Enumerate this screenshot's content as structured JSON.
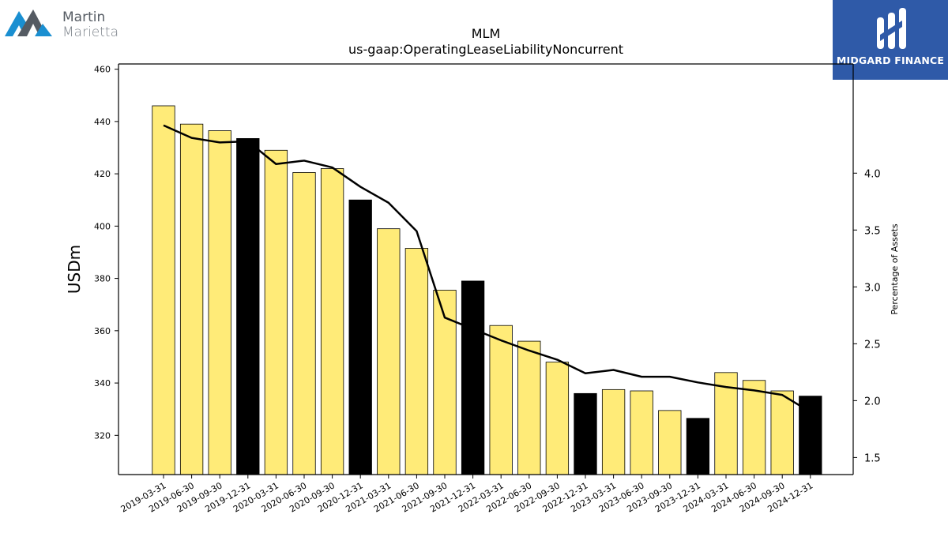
{
  "logos": {
    "left": {
      "line1": "Martin",
      "line2": "Marietta"
    },
    "right": {
      "text": "MIDGARD FINANCE"
    }
  },
  "colors": {
    "bar_default": "#ffeb78",
    "bar_highlight": "#000000",
    "line": "#000000",
    "logo_right_bg": "#2f5aa8",
    "logo_left_blue": "#1a8fd1",
    "logo_left_gray": "#555b63"
  },
  "chart_data": {
    "type": "bar",
    "title": "MLM",
    "subtitle": "us-gaap:OperatingLeaseLiabilityNoncurrent",
    "ylabel": "USDm",
    "y2label": "Percentage of Assets",
    "ylim": [
      305,
      462
    ],
    "y2lim": [
      1.35,
      4.96
    ],
    "yticks": [
      320,
      340,
      360,
      380,
      400,
      420,
      440,
      460
    ],
    "y2ticks": [
      1.5,
      2.0,
      2.5,
      3.0,
      3.5,
      4.0
    ],
    "categories": [
      "2019-03-31",
      "2019-06-30",
      "2019-09-30",
      "2019-12-31",
      "2020-03-31",
      "2020-06-30",
      "2020-09-30",
      "2020-12-31",
      "2021-03-31",
      "2021-06-30",
      "2021-09-30",
      "2021-12-31",
      "2022-03-31",
      "2022-06-30",
      "2022-09-30",
      "2022-12-31",
      "2023-03-31",
      "2023-06-30",
      "2023-09-30",
      "2023-12-31",
      "2024-03-31",
      "2024-06-30",
      "2024-09-30",
      "2024-12-31"
    ],
    "series": [
      {
        "type": "bar",
        "axis": "left",
        "values": [
          446,
          439,
          436.5,
          433.5,
          429,
          420.5,
          422,
          410,
          399,
          391.5,
          375.5,
          379,
          362,
          356,
          348,
          336,
          337.5,
          337,
          329.5,
          326.5,
          344,
          341,
          337,
          335
        ],
        "highlight": [
          false,
          false,
          false,
          true,
          false,
          false,
          false,
          true,
          false,
          false,
          false,
          true,
          false,
          false,
          false,
          true,
          false,
          false,
          false,
          true,
          false,
          false,
          false,
          true
        ]
      },
      {
        "type": "line",
        "axis": "right",
        "values": [
          4.42,
          4.31,
          4.27,
          4.28,
          4.08,
          4.11,
          4.05,
          3.88,
          3.74,
          3.49,
          2.73,
          2.63,
          2.53,
          2.44,
          2.36,
          2.24,
          2.27,
          2.21,
          2.21,
          2.16,
          2.12,
          2.09,
          2.05,
          1.9
        ]
      }
    ]
  }
}
